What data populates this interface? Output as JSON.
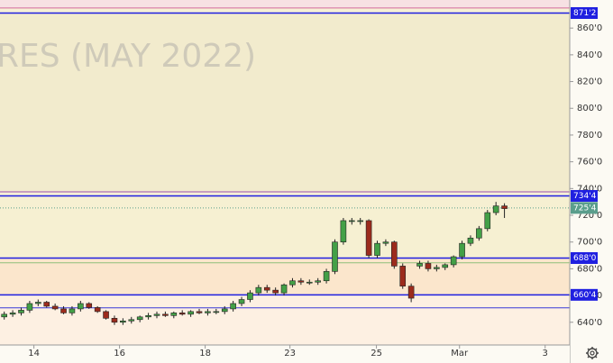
{
  "chart_data": {
    "type": "candlestick",
    "watermark": "RES (MAY 2022)",
    "x": [
      0,
      1,
      2,
      3,
      4,
      5,
      6,
      7,
      8,
      9,
      10,
      11,
      12,
      13,
      14,
      15,
      16,
      17,
      18,
      19,
      20,
      21,
      22,
      23,
      24,
      25,
      26,
      27,
      28,
      29,
      30,
      31,
      32,
      33,
      34,
      35,
      36,
      37,
      38,
      39,
      40,
      41,
      42,
      43,
      44,
      45,
      46,
      47,
      48,
      49,
      50,
      51,
      52,
      53,
      54,
      55,
      56,
      57,
      58,
      59
    ],
    "open": [
      644,
      646,
      647,
      649,
      654,
      655,
      652,
      650,
      647,
      650,
      654,
      651,
      648,
      643,
      640,
      641,
      642,
      644,
      645,
      646,
      645,
      647,
      646,
      648,
      647,
      648,
      648,
      650,
      654,
      657,
      662,
      666,
      664,
      662,
      668,
      671,
      670,
      670,
      671,
      678,
      700,
      716,
      716,
      716,
      690,
      699,
      700,
      682,
      667,
      682,
      684,
      680,
      681,
      683,
      689,
      699,
      703,
      710,
      722,
      727
    ],
    "high": [
      648,
      649,
      651,
      656,
      657,
      656,
      654,
      652,
      652,
      656,
      655,
      652,
      649,
      645,
      643,
      644,
      645,
      647,
      648,
      648,
      648,
      649,
      649,
      650,
      650,
      650,
      652,
      656,
      659,
      664,
      668,
      668,
      666,
      669,
      673,
      673,
      672,
      673,
      680,
      702,
      718,
      718,
      718,
      717,
      701,
      702,
      701,
      684,
      669,
      686,
      686,
      683,
      684,
      690,
      701,
      705,
      712,
      724,
      730,
      729
    ],
    "low": [
      642,
      644,
      645,
      647,
      652,
      651,
      649,
      646,
      645,
      648,
      650,
      647,
      642,
      638,
      638,
      639,
      640,
      642,
      643,
      644,
      643,
      645,
      644,
      646,
      645,
      646,
      646,
      648,
      652,
      655,
      660,
      662,
      660,
      660,
      666,
      668,
      668,
      668,
      669,
      676,
      698,
      713,
      713,
      688,
      688,
      697,
      680,
      665,
      655,
      680,
      678,
      678,
      679,
      681,
      687,
      697,
      701,
      708,
      720,
      718
    ],
    "close": [
      646,
      647,
      649,
      654,
      655,
      652,
      650,
      647,
      650,
      654,
      651,
      648,
      643,
      640,
      641,
      642,
      644,
      645,
      646,
      645,
      647,
      646,
      648,
      647,
      648,
      648,
      650,
      654,
      657,
      662,
      666,
      664,
      662,
      668,
      671,
      670,
      670,
      671,
      678,
      700,
      716,
      716,
      716,
      690,
      699,
      700,
      682,
      667,
      658,
      684,
      680,
      681,
      683,
      689,
      699,
      703,
      710,
      722,
      727,
      725
    ],
    "up_color": "#43a047",
    "down_color": "#9c2b1c",
    "xlim": [
      -0.5,
      66.7
    ],
    "xticks": [
      {
        "value": 3.5,
        "label": "14"
      },
      {
        "value": 13.6,
        "label": "16"
      },
      {
        "value": 23.7,
        "label": "18"
      },
      {
        "value": 33.7,
        "label": "23"
      },
      {
        "value": 43.9,
        "label": "25"
      },
      {
        "value": 53.7,
        "label": "Mar"
      },
      {
        "value": 63.8,
        "label": "3"
      }
    ],
    "ylim": [
      623,
      881
    ],
    "yticks": [
      {
        "value": 640,
        "label": "640'0"
      },
      {
        "value": 660,
        "label": "660'0"
      },
      {
        "value": 680,
        "label": "680'0"
      },
      {
        "value": 700,
        "label": "700'0"
      },
      {
        "value": 720,
        "label": "720'0"
      },
      {
        "value": 740,
        "label": "740'0"
      },
      {
        "value": 760,
        "label": "760'0"
      },
      {
        "value": 780,
        "label": "780'0"
      },
      {
        "value": 800,
        "label": "800'0"
      },
      {
        "value": 820,
        "label": "820'0"
      },
      {
        "value": 840,
        "label": "840'0"
      },
      {
        "value": 860,
        "label": "860'0"
      }
    ],
    "levels": [
      {
        "value": 871.25,
        "label": "871'2",
        "color": "#1f1fe0"
      },
      {
        "value": 734.5,
        "label": "734'4",
        "color": "#1f1fe0"
      },
      {
        "value": 725.5,
        "label": "725'4",
        "color": "#5a9e8c"
      },
      {
        "value": 688,
        "label": "688'0",
        "color": "#1f1fe0"
      },
      {
        "value": 660.5,
        "label": "660'4",
        "color": "#1f1fe0"
      }
    ],
    "lines": [
      {
        "value": 875,
        "color": "#d36a9c"
      },
      {
        "value": 737.5,
        "color": "#9a4fb0"
      },
      {
        "value": 684.5,
        "color": "#8fbf7a"
      },
      {
        "value": 650.8,
        "color": "#3a3ad8"
      }
    ]
  }
}
